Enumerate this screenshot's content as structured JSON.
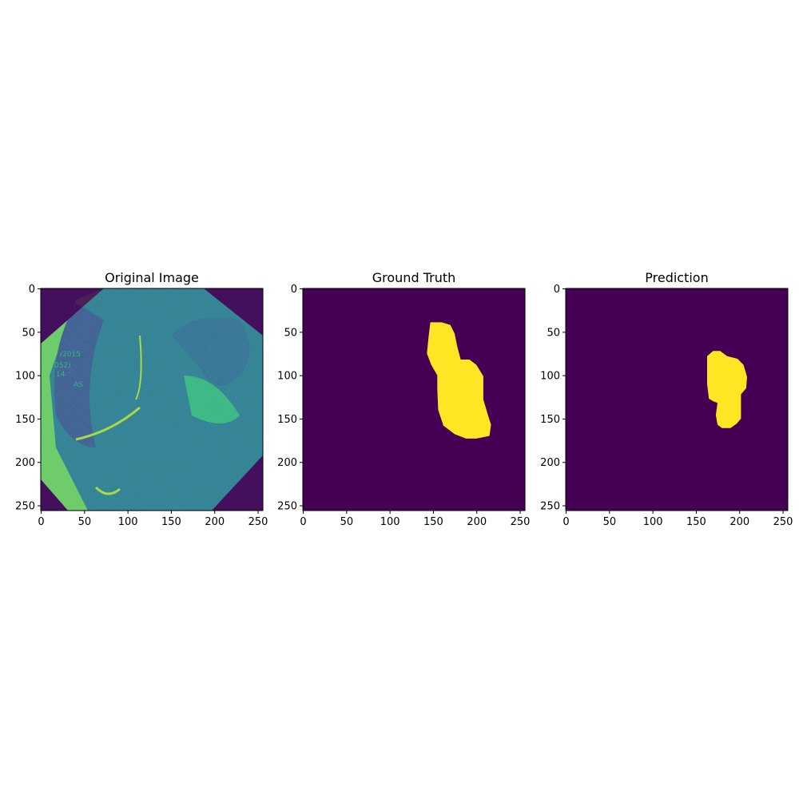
{
  "chart_data": [
    {
      "type": "heatmap",
      "title": "Original Image",
      "xlabel": "",
      "ylabel": "",
      "xlim": [
        0,
        256
      ],
      "ylim": [
        256,
        0
      ],
      "xticks": [
        "0",
        "50",
        "100",
        "150",
        "200",
        "250"
      ],
      "yticks": [
        "0",
        "50",
        "100",
        "150",
        "200",
        "250"
      ],
      "colormap": "viridis",
      "image_size": [
        256,
        256
      ],
      "overlay_text": [
        "/2015",
        "052)",
        "14",
        "AS"
      ],
      "content": "grayscale endoscopy frame rendered with viridis colormap, octagonal field of view"
    },
    {
      "type": "heatmap",
      "title": "Ground Truth",
      "xlabel": "",
      "ylabel": "",
      "xlim": [
        0,
        256
      ],
      "ylim": [
        256,
        0
      ],
      "xticks": [
        "0",
        "50",
        "100",
        "150",
        "200",
        "250"
      ],
      "yticks": [
        "0",
        "50",
        "100",
        "150",
        "200",
        "250"
      ],
      "colormap": "viridis",
      "image_size": [
        256,
        256
      ],
      "background_color": "#440154",
      "mask_color": "#fde725",
      "mask_polygon": [
        [
          147,
          39
        ],
        [
          160,
          39
        ],
        [
          170,
          42
        ],
        [
          175,
          52
        ],
        [
          178,
          67
        ],
        [
          182,
          82
        ],
        [
          192,
          82
        ],
        [
          200,
          88
        ],
        [
          208,
          101
        ],
        [
          208,
          128
        ],
        [
          214,
          148
        ],
        [
          217,
          157
        ],
        [
          215,
          170
        ],
        [
          200,
          173
        ],
        [
          188,
          173
        ],
        [
          175,
          168
        ],
        [
          162,
          158
        ],
        [
          156,
          140
        ],
        [
          155,
          115
        ],
        [
          155,
          100
        ],
        [
          148,
          88
        ],
        [
          143,
          75
        ],
        [
          145,
          55
        ]
      ]
    },
    {
      "type": "heatmap",
      "title": "Prediction",
      "xlabel": "",
      "ylabel": "",
      "xlim": [
        0,
        256
      ],
      "ylim": [
        256,
        0
      ],
      "xticks": [
        "0",
        "50",
        "100",
        "150",
        "200",
        "250"
      ],
      "yticks": [
        "0",
        "50",
        "100",
        "150",
        "200",
        "250"
      ],
      "colormap": "viridis",
      "image_size": [
        256,
        256
      ],
      "background_color": "#440154",
      "mask_color": "#fde725",
      "mask_polygon": [
        [
          163,
          78
        ],
        [
          170,
          72
        ],
        [
          178,
          72
        ],
        [
          186,
          78
        ],
        [
          198,
          81
        ],
        [
          205,
          88
        ],
        [
          209,
          102
        ],
        [
          208,
          115
        ],
        [
          202,
          122
        ],
        [
          202,
          150
        ],
        [
          197,
          156
        ],
        [
          190,
          161
        ],
        [
          180,
          161
        ],
        [
          175,
          157
        ],
        [
          173,
          146
        ],
        [
          175,
          132
        ],
        [
          170,
          130
        ],
        [
          165,
          127
        ],
        [
          163,
          110
        ],
        [
          163,
          90
        ]
      ]
    }
  ],
  "colors": {
    "viridis_low": "#440154",
    "viridis_high": "#fde725"
  }
}
